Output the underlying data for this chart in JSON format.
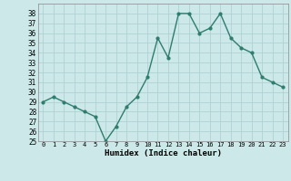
{
  "x": [
    0,
    1,
    2,
    3,
    4,
    5,
    6,
    7,
    8,
    9,
    10,
    11,
    12,
    13,
    14,
    15,
    16,
    17,
    18,
    19,
    20,
    21,
    22,
    23
  ],
  "y": [
    29.0,
    29.5,
    29.0,
    28.5,
    28.0,
    27.5,
    25.0,
    26.5,
    28.5,
    29.5,
    31.5,
    35.5,
    33.5,
    38.0,
    38.0,
    36.0,
    36.5,
    38.0,
    35.5,
    34.5,
    34.0,
    31.5,
    31.0,
    30.5
  ],
  "xlabel": "Humidex (Indice chaleur)",
  "ylabel": "",
  "ylim": [
    25,
    39
  ],
  "xlim": [
    -0.5,
    23.5
  ],
  "yticks": [
    25,
    26,
    27,
    28,
    29,
    30,
    31,
    32,
    33,
    34,
    35,
    36,
    37,
    38
  ],
  "xticks": [
    0,
    1,
    2,
    3,
    4,
    5,
    6,
    7,
    8,
    9,
    10,
    11,
    12,
    13,
    14,
    15,
    16,
    17,
    18,
    19,
    20,
    21,
    22,
    23
  ],
  "xtick_labels": [
    "0",
    "1",
    "2",
    "3",
    "4",
    "5",
    "6",
    "7",
    "8",
    "9",
    "10",
    "11",
    "12",
    "13",
    "14",
    "15",
    "16",
    "17",
    "18",
    "19",
    "20",
    "21",
    "22",
    "23"
  ],
  "line_color": "#2e7d6e",
  "marker_color": "#2e7d6e",
  "bg_color": "#cce8e8",
  "grid_color": "#aacece",
  "title": ""
}
